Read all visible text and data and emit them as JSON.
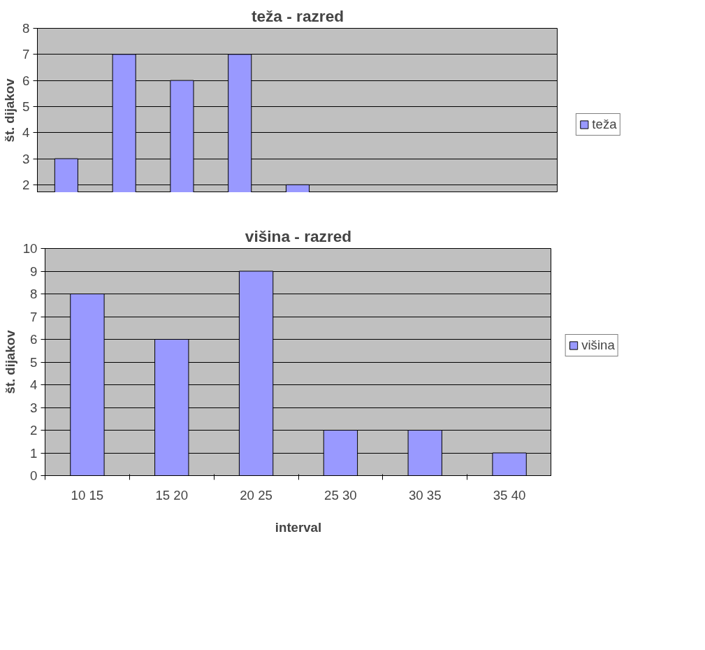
{
  "chart_data": [
    {
      "type": "bar",
      "title": "teža - razred",
      "ylabel": "št. dijakov",
      "categories": [
        null,
        null,
        null,
        null,
        null,
        null,
        null,
        null,
        null
      ],
      "series": [
        {
          "name": "teža",
          "color": "#9999ff",
          "values": [
            3,
            7,
            6,
            7,
            2,
            null,
            null,
            null,
            null
          ]
        }
      ],
      "ylim": [
        1.7,
        8
      ],
      "yticks": [
        2,
        3,
        4,
        5,
        6,
        7,
        8
      ],
      "grid": "y",
      "legend": "right",
      "tick_labels": "y"
    },
    {
      "type": "bar",
      "title": "višina - razred",
      "xlabel": "interval",
      "ylabel": "št. dijakov",
      "categories": [
        "10 15",
        "15 20",
        "20 25",
        "25 30",
        "30 35",
        "35 40"
      ],
      "series": [
        {
          "name": "višina",
          "color": "#9999ff",
          "values": [
            8,
            6,
            9,
            2,
            2,
            1
          ]
        }
      ],
      "ylim": [
        0,
        10
      ],
      "yticks": [
        0,
        1,
        2,
        3,
        4,
        5,
        6,
        7,
        8,
        9,
        10
      ],
      "grid": "y",
      "legend": "right"
    }
  ]
}
